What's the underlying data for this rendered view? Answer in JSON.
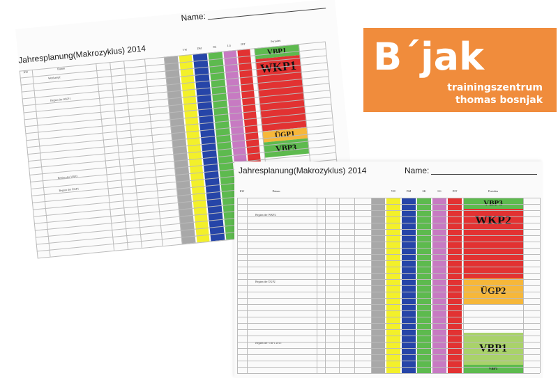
{
  "sheet_back": {
    "title": "Jahresplanung(Makrozyklus) 2014",
    "name_label": "Name:",
    "headers": [
      "KW",
      "Datum",
      "VW",
      "DM",
      "SK",
      "LG",
      "INT",
      "Perioden"
    ],
    "phases": [
      "VBP1",
      "WKP1",
      "ÜGP1",
      "VBP3"
    ],
    "row_texts": [
      "Wettkampf",
      "Beginn der WKP1",
      "Beginn der VBP3",
      "Beginn der ÜGP1"
    ]
  },
  "sheet_front": {
    "title": "Jahresplanung(Makrozyklus) 2014",
    "name_label": "Name:",
    "headers": [
      "KW",
      "Datum",
      "VW",
      "DM",
      "SK",
      "LG",
      "INT",
      "Perioden"
    ],
    "phases": [
      "VBP3",
      "WKP2",
      "ÜGP2",
      "VBP1",
      "VBP1"
    ],
    "row_texts": [
      "Beginn der WKP2",
      "Beginn der ÜGP2",
      "Beginn der VBP1 2015"
    ]
  },
  "logo": {
    "main": "B´jak",
    "line1": "trainingszentrum",
    "line2": "thomas bosnjak"
  },
  "colors": {
    "gray": "#a8a8a8",
    "yellow": "#f3f02a",
    "blue": "#2645a8",
    "green": "#5dba4e",
    "violet": "#c77ac2",
    "red": "#e23232",
    "orange": "#f6b73a",
    "light_green": "#a9d26a",
    "logo_orange": "#f08c3c"
  }
}
